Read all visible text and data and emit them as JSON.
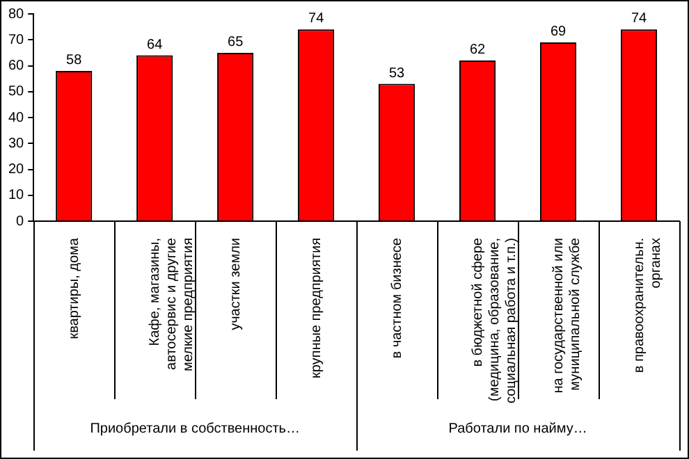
{
  "chart_data": {
    "type": "bar",
    "categories": [
      "квартиры, дома",
      "Кафе, магазины, автосервис и другие мелкие предприятия",
      "участки земли",
      "крупные предприятия",
      "в частном бизнесе",
      "в бюджетной сфере (медицина, образование, социальная работа и т.п.)",
      "на государственной или муниципальной службе",
      "в правоохранительн. органах"
    ],
    "values": [
      58,
      64,
      65,
      74,
      53,
      62,
      69,
      74
    ],
    "color": "#ff0000",
    "ylim": [
      0,
      80
    ],
    "yticks": [
      0,
      10,
      20,
      30,
      40,
      50,
      60,
      70,
      80
    ],
    "grid": false,
    "legend": false,
    "data_labels": true,
    "annotations": [
      "Приобретали в собственность…",
      "Работали по найму…"
    ]
  }
}
